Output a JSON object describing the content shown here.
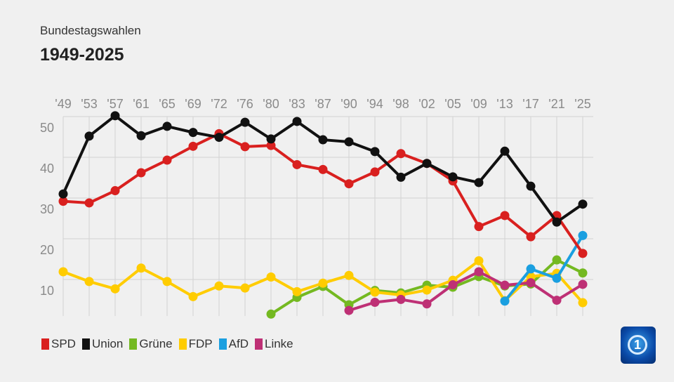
{
  "header": {
    "subtitle": "Bundestagswahlen",
    "title": "1949-2025"
  },
  "chart_data": {
    "type": "line",
    "title": "1949-2025",
    "subtitle": "Bundestagswahlen",
    "xlabel": "",
    "ylabel": "",
    "categories": [
      "'49",
      "'53",
      "'57",
      "'61",
      "'65",
      "'69",
      "'72",
      "'76",
      "'80",
      "'83",
      "'87",
      "'90",
      "'94",
      "'98",
      "'02",
      "'05",
      "'09",
      "'13",
      "'17",
      "'21",
      "'25"
    ],
    "yticks": [
      10,
      20,
      30,
      40,
      50
    ],
    "ylim": [
      0,
      50
    ],
    "grid": true,
    "legend_position": "bottom-left",
    "series": [
      {
        "name": "SPD",
        "color": "#d9201f",
        "values": [
          29.2,
          28.8,
          31.8,
          36.2,
          39.3,
          42.7,
          45.8,
          42.6,
          42.9,
          38.2,
          37.0,
          33.5,
          36.4,
          40.9,
          38.5,
          34.2,
          23.0,
          25.7,
          20.5,
          25.7,
          16.4
        ]
      },
      {
        "name": "Union",
        "color": "#111111",
        "values": [
          31.0,
          45.2,
          50.2,
          45.3,
          47.6,
          46.1,
          44.9,
          48.6,
          44.5,
          48.8,
          44.3,
          43.8,
          41.4,
          35.1,
          38.5,
          35.2,
          33.8,
          41.5,
          32.9,
          24.1,
          28.5
        ]
      },
      {
        "name": "Grüne",
        "color": "#74b921",
        "values": [
          null,
          null,
          null,
          null,
          null,
          null,
          null,
          null,
          1.5,
          5.6,
          8.3,
          3.8,
          7.3,
          6.7,
          8.6,
          8.1,
          10.7,
          8.4,
          8.9,
          14.8,
          11.6
        ]
      },
      {
        "name": "FDP",
        "color": "#ffcc00",
        "values": [
          11.9,
          9.5,
          7.7,
          12.8,
          9.5,
          5.8,
          8.4,
          7.9,
          10.6,
          7.0,
          9.1,
          11.0,
          6.9,
          6.2,
          7.4,
          9.8,
          14.6,
          4.8,
          10.7,
          11.5,
          4.3
        ]
      },
      {
        "name": "AfD",
        "color": "#1a9fe0",
        "values": [
          null,
          null,
          null,
          null,
          null,
          null,
          null,
          null,
          null,
          null,
          null,
          null,
          null,
          null,
          null,
          null,
          null,
          4.7,
          12.6,
          10.3,
          20.8
        ]
      },
      {
        "name": "Linke",
        "color": "#be3075",
        "values": [
          null,
          null,
          null,
          null,
          null,
          null,
          null,
          null,
          null,
          null,
          null,
          2.4,
          4.4,
          5.1,
          4.0,
          8.7,
          11.9,
          8.6,
          9.2,
          4.9,
          8.8
        ]
      }
    ]
  }
}
